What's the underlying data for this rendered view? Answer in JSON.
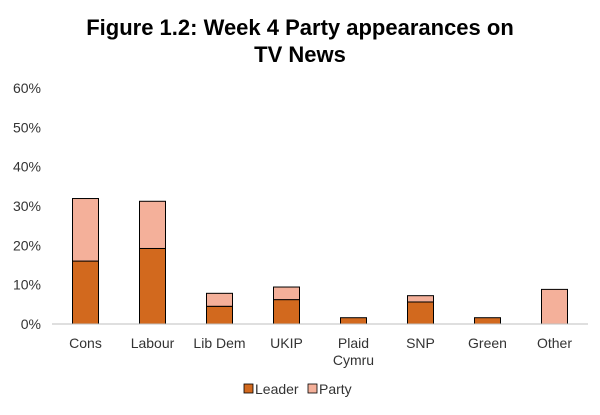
{
  "chart_data": {
    "type": "bar",
    "stacked": true,
    "title_lines": [
      "Figure 1.2: Week 4 Party appearances on",
      "TV News"
    ],
    "categories": [
      {
        "lines": [
          "Cons"
        ]
      },
      {
        "lines": [
          "Labour"
        ]
      },
      {
        "lines": [
          "Lib Dem"
        ]
      },
      {
        "lines": [
          "UKIP"
        ]
      },
      {
        "lines": [
          "Plaid",
          "Cymru"
        ]
      },
      {
        "lines": [
          "SNP"
        ]
      },
      {
        "lines": [
          "Green"
        ]
      },
      {
        "lines": [
          "Other"
        ]
      }
    ],
    "series": [
      {
        "name": "Leader",
        "color": "#d2691e",
        "values": [
          16,
          19.2,
          4.5,
          6.2,
          1.6,
          5.6,
          1.6,
          0
        ]
      },
      {
        "name": "Party",
        "color": "#f4b09a",
        "values": [
          15.9,
          12,
          3.3,
          3.2,
          0,
          1.6,
          0,
          8.8
        ]
      }
    ],
    "yticks": [
      "0%",
      "10%",
      "20%",
      "30%",
      "40%",
      "50%",
      "60%"
    ],
    "ylim": [
      0,
      60
    ],
    "xlabel": "",
    "ylabel": "",
    "legend_position": "bottom",
    "grid": false
  }
}
